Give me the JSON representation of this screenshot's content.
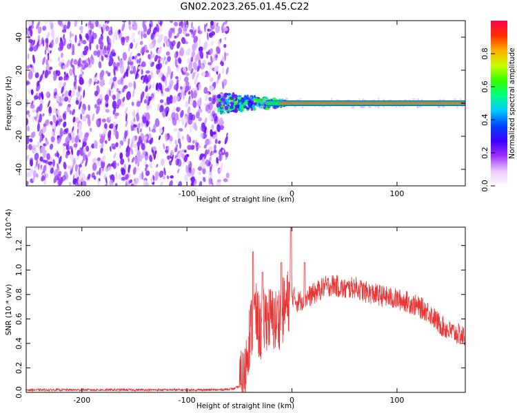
{
  "title": "GN02.2023.265.01.45.C22",
  "colors": {
    "signal_line": "#e83535",
    "background_blobs": "#7a1ff0",
    "axis": "#000000"
  },
  "chart_data": [
    {
      "type": "heatmap",
      "xlabel": "Height of straight line (km)",
      "ylabel": "Frequency (Hz)",
      "xlim": [
        -253,
        165
      ],
      "ylim": [
        -50,
        50
      ],
      "x_ticks": [
        -200,
        -100,
        0,
        100
      ],
      "y_ticks": [
        -40,
        -20,
        0,
        20,
        40
      ],
      "colorbar": {
        "label": "Normalized spectral amplitude",
        "range": [
          0.0,
          1.0
        ],
        "ticks": [
          "0.0",
          "0.2",
          "0.4",
          "0.6",
          "0.8"
        ],
        "colormap": [
          "#ffffff",
          "#e8c8ff",
          "#9b30ff",
          "#3a00ff",
          "#0044ff",
          "#00c8ff",
          "#00ff88",
          "#33ff00",
          "#c8ff00",
          "#ffb000",
          "#ff3000",
          "#ff0050"
        ]
      },
      "features": {
        "noise_region_x": [
          -253,
          -65
        ],
        "signal_frequency_hz": 0,
        "signal_onset_x": -70,
        "steady_signal_from_x": -5
      },
      "grid": false
    },
    {
      "type": "line",
      "xlabel": "Height of straight line (km)",
      "ylabel": "SNR (10 * v/v)",
      "y_multiplier": "(x10^4)",
      "xlim": [
        -253,
        165
      ],
      "ylim": [
        0,
        1.35
      ],
      "x_ticks": [
        -200,
        -100,
        0,
        100
      ],
      "y_ticks": [
        "0.0",
        "0.2",
        "0.4",
        "0.6",
        "0.8",
        "1.0",
        "1.2"
      ],
      "series": [
        {
          "x": [
            -253,
            -200,
            -150,
            -100,
            -70,
            -55,
            -50,
            -45,
            -42,
            -38,
            -35,
            -30,
            -25,
            -20,
            -15,
            -10,
            -5,
            -2,
            0,
            5,
            10,
            20,
            30,
            40,
            50,
            60,
            70,
            80,
            90,
            100,
            110,
            120,
            130,
            140,
            150,
            160,
            165
          ],
          "values": [
            0.02,
            0.02,
            0.02,
            0.02,
            0.02,
            0.03,
            0.05,
            0.12,
            0.4,
            0.55,
            0.65,
            0.5,
            0.62,
            0.6,
            0.58,
            0.65,
            0.72,
            0.78,
            0.8,
            0.74,
            0.76,
            0.8,
            0.86,
            0.88,
            0.84,
            0.86,
            0.82,
            0.8,
            0.78,
            0.76,
            0.74,
            0.7,
            0.66,
            0.56,
            0.5,
            0.47,
            0.45
          ]
        }
      ],
      "peaks": [
        {
          "x": -37,
          "y": 1.15
        },
        {
          "x": -28,
          "y": 0.98
        },
        {
          "x": -10,
          "y": 1.06
        },
        {
          "x": -1,
          "y": 1.35
        },
        {
          "x": 12,
          "y": 1.06
        }
      ],
      "grid": false
    }
  ]
}
